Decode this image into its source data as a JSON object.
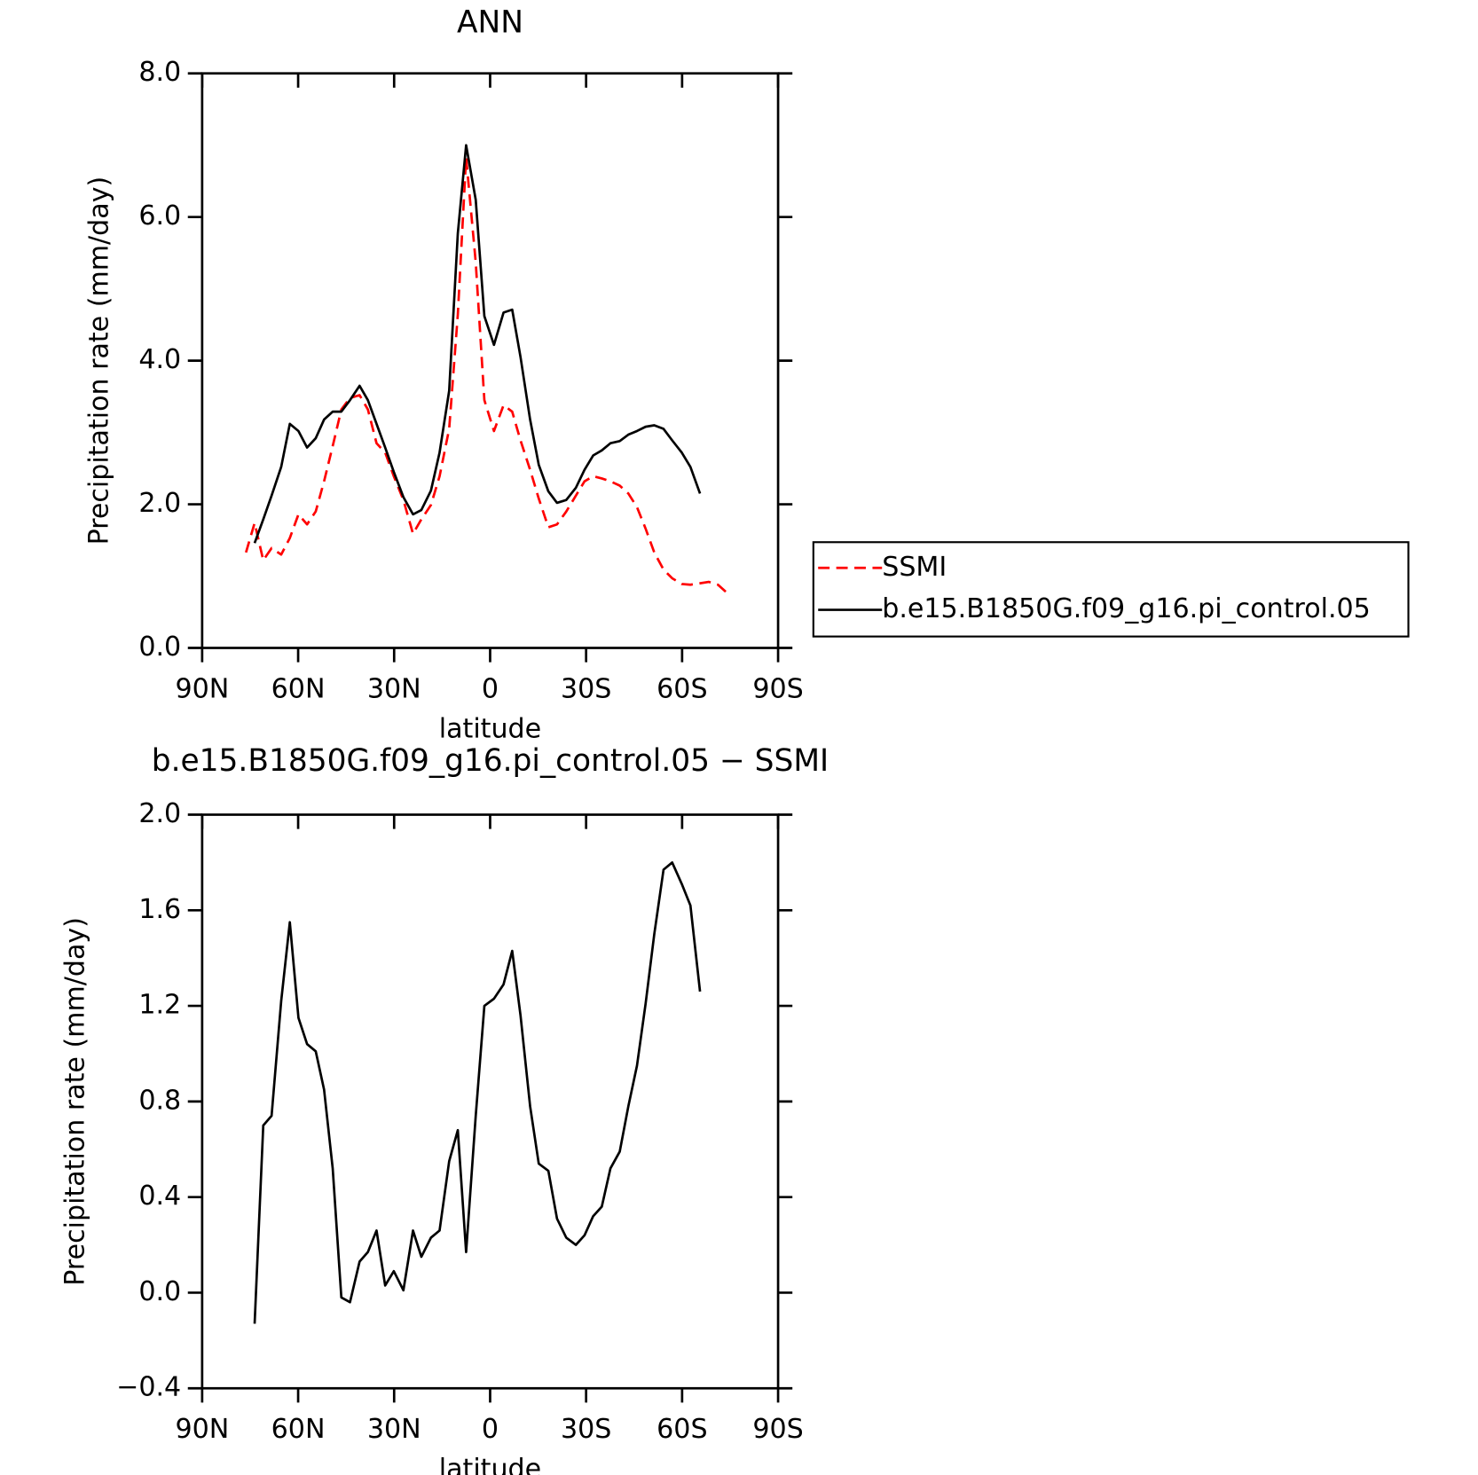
{
  "chart_data": [
    {
      "type": "line",
      "title": "ANN",
      "xlabel": "latitude",
      "ylabel": "Precipitation rate (mm/day)",
      "x": [
        76.3,
        73.6,
        70.9,
        68.3,
        65.3,
        62.6,
        59.9,
        57.2,
        54.5,
        51.9,
        49.2,
        46.5,
        43.8,
        40.8,
        38.2,
        35.5,
        32.8,
        30.1,
        27.1,
        24.1,
        21.5,
        18.5,
        15.8,
        12.8,
        10.1,
        7.5,
        4.5,
        1.8,
        -1.2,
        -4.2,
        -6.9,
        -9.5,
        -12.5,
        -15.2,
        -18.2,
        -20.9,
        -23.8,
        -26.8,
        -29.5,
        -32.2,
        -34.9,
        -37.6,
        -40.5,
        -43.2,
        -45.9,
        -48.6,
        -51.3,
        -54.2,
        -56.9,
        -59.9,
        -62.6,
        -65.6,
        -68.3,
        -71.2,
        -74.2
      ],
      "series": [
        {
          "name": "SSMI",
          "color": "#ff0000",
          "line_style": "dashed",
          "values": [
            1.33,
            1.74,
            1.22,
            1.39,
            1.3,
            1.53,
            1.86,
            1.72,
            1.9,
            2.32,
            2.81,
            3.32,
            3.48,
            3.52,
            3.32,
            2.85,
            2.72,
            2.39,
            2.06,
            1.59,
            1.79,
            1.99,
            2.39,
            3.05,
            4.64,
            6.83,
            5.37,
            3.45,
            3.02,
            3.38,
            3.29,
            2.89,
            2.48,
            2.08,
            1.68,
            1.72,
            1.9,
            2.12,
            2.32,
            2.39,
            2.36,
            2.32,
            2.26,
            2.15,
            1.96,
            1.66,
            1.33,
            1.09,
            0.97,
            0.89,
            0.88,
            0.9,
            0.92,
            0.88,
            0.76
          ]
        },
        {
          "name": "b.e15.B1850G.f09_g16.pi_control.05",
          "color": "#000000",
          "line_style": "solid",
          "values": [
            null,
            1.46,
            1.79,
            2.12,
            2.52,
            3.12,
            3.02,
            2.79,
            2.92,
            3.18,
            3.29,
            3.29,
            3.45,
            3.65,
            3.45,
            3.12,
            2.79,
            2.45,
            2.1,
            1.86,
            1.92,
            2.19,
            2.72,
            3.58,
            5.77,
            7.0,
            6.24,
            4.62,
            4.22,
            4.67,
            4.71,
            4.05,
            3.18,
            2.55,
            2.18,
            2.02,
            2.06,
            2.23,
            2.48,
            2.68,
            2.75,
            2.85,
            2.88,
            2.97,
            3.02,
            3.08,
            3.1,
            3.05,
            2.89,
            2.72,
            2.52,
            2.15,
            null,
            null,
            null
          ]
        }
      ],
      "xlim": [
        90,
        -90
      ],
      "xticks": [
        {
          "value": 90,
          "label": "90N"
        },
        {
          "value": 60,
          "label": "60N"
        },
        {
          "value": 30,
          "label": "30N"
        },
        0,
        {
          "value": -30,
          "label": "30S"
        },
        {
          "value": -60,
          "label": "60S"
        },
        {
          "value": -90,
          "label": "90S"
        }
      ],
      "ylim": [
        0,
        8
      ],
      "yticks": [
        {
          "value": 0,
          "label": "0.0"
        },
        {
          "value": 2,
          "label": "2.0"
        },
        {
          "value": 4,
          "label": "4.0"
        },
        {
          "value": 6,
          "label": "6.0"
        },
        {
          "value": 8,
          "label": "8.0"
        }
      ],
      "legend": "right"
    },
    {
      "type": "line",
      "title": "b.e15.B1850G.f09_g16.pi_control.05 − SSMI",
      "xlabel": "latitude",
      "ylabel": "Precipitation rate (mm/day)",
      "x": [
        73.6,
        70.9,
        68.3,
        65.3,
        62.6,
        59.9,
        57.2,
        54.5,
        51.9,
        49.2,
        46.5,
        43.8,
        40.8,
        38.2,
        35.5,
        32.8,
        30.1,
        27.1,
        24.1,
        21.5,
        18.5,
        15.8,
        12.8,
        10.1,
        7.5,
        4.5,
        1.8,
        -1.2,
        -4.2,
        -6.9,
        -9.5,
        -12.5,
        -15.2,
        -18.2,
        -20.9,
        -23.8,
        -26.8,
        -29.5,
        -32.2,
        -34.9,
        -37.6,
        -40.5,
        -43.2,
        -45.9,
        -48.6,
        -51.3,
        -54.2,
        -56.9,
        -59.9,
        -62.6,
        -65.6
      ],
      "series": [
        {
          "color": "#000000",
          "line_style": "solid",
          "values": [
            -0.13,
            0.7,
            0.74,
            1.22,
            1.55,
            1.15,
            1.04,
            1.01,
            0.85,
            0.52,
            -0.02,
            -0.04,
            0.13,
            0.17,
            0.26,
            0.03,
            0.09,
            0.01,
            0.26,
            0.15,
            0.23,
            0.26,
            0.55,
            0.68,
            0.17,
            0.74,
            1.2,
            1.23,
            1.29,
            1.43,
            1.16,
            0.78,
            0.54,
            0.51,
            0.31,
            0.23,
            0.2,
            0.24,
            0.32,
            0.36,
            0.52,
            0.59,
            0.78,
            0.95,
            1.21,
            1.5,
            1.77,
            1.8,
            1.71,
            1.62,
            1.26
          ]
        }
      ],
      "xlim": [
        90,
        -90
      ],
      "xticks": [
        {
          "value": 90,
          "label": "90N"
        },
        {
          "value": 60,
          "label": "60N"
        },
        {
          "value": 30,
          "label": "30N"
        },
        0,
        {
          "value": -30,
          "label": "30S"
        },
        {
          "value": -60,
          "label": "60S"
        },
        {
          "value": -90,
          "label": "90S"
        }
      ],
      "ylim": [
        -0.4,
        2.0
      ],
      "yticks": [
        {
          "value": -0.4,
          "label": "−0.4"
        },
        {
          "value": 0,
          "label": "0.0"
        },
        {
          "value": 0.4,
          "label": "0.4"
        },
        {
          "value": 0.8,
          "label": "0.8"
        },
        {
          "value": 1.2,
          "label": "1.2"
        },
        {
          "value": 1.6,
          "label": "1.6"
        },
        {
          "value": 2.0,
          "label": "2.0"
        }
      ]
    }
  ]
}
